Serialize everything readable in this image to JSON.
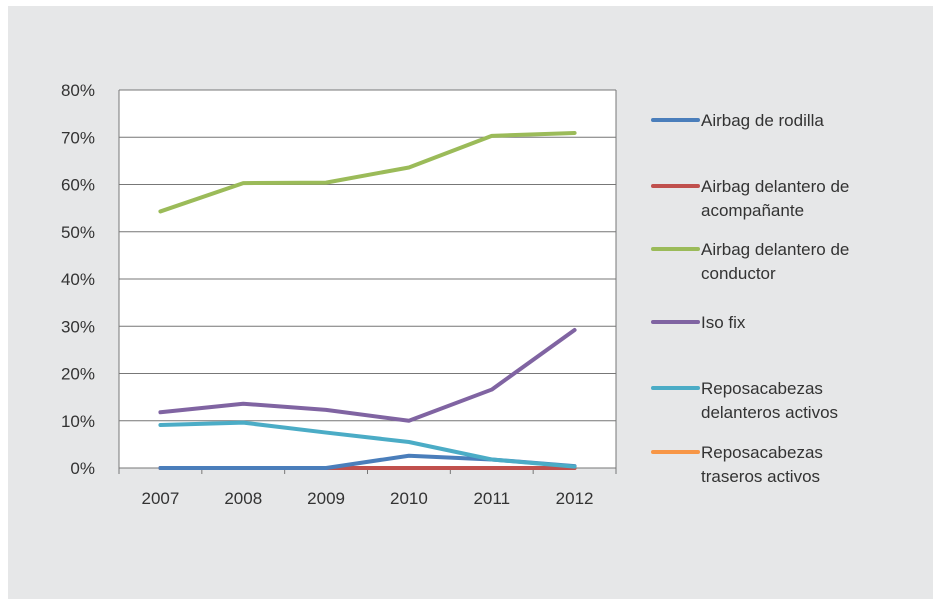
{
  "chart_data": {
    "type": "line",
    "categories": [
      "2007",
      "2008",
      "2009",
      "2010",
      "2011",
      "2012"
    ],
    "y_ticks": [
      "0%",
      "10%",
      "20%",
      "30%",
      "40%",
      "50%",
      "60%",
      "70%",
      "80%"
    ],
    "ylim": [
      0,
      80
    ],
    "grid": true,
    "legend_position": "right",
    "colors": {
      "top_tick": "#e30613",
      "grid": "#777777",
      "axis_text": "#333333",
      "background": "#e6e7e8"
    },
    "series": [
      {
        "name": "Airbag de rodilla",
        "name_lines": [
          "Airbag de rodilla"
        ],
        "color": "#4a7ebb",
        "values": [
          0,
          0,
          0,
          2.6,
          1.8,
          0.4
        ]
      },
      {
        "name": "Airbag delantero de acompañante",
        "name_lines": [
          "Airbag delantero de",
          "acompañante"
        ],
        "color": "#c0504d",
        "values": [
          0,
          0,
          0,
          0,
          0,
          0
        ]
      },
      {
        "name": "Airbag delantero de conductor",
        "name_lines": [
          "Airbag delantero de",
          "conductor"
        ],
        "color": "#9bbb59",
        "values": [
          54.3,
          60.3,
          60.4,
          63.6,
          70.3,
          70.9
        ]
      },
      {
        "name": "Isofix",
        "name_lines": [
          "Iso fix"
        ],
        "color": "#8064a2",
        "values": [
          11.8,
          13.6,
          12.3,
          10.0,
          16.6,
          29.2
        ]
      },
      {
        "name": "Reposacabezas delanteros activos",
        "name_lines": [
          "Reposacabezas",
          "delanteros activos"
        ],
        "color": "#4bacc6",
        "values": [
          9.1,
          9.6,
          7.5,
          5.5,
          1.8,
          0.3
        ]
      },
      {
        "name": "Reposacabezas traseros activos",
        "name_lines": [
          "Reposacabezas",
          "traseros activos"
        ],
        "color": "#f79646",
        "values": [
          0,
          0,
          0,
          0,
          0,
          0
        ]
      }
    ]
  }
}
